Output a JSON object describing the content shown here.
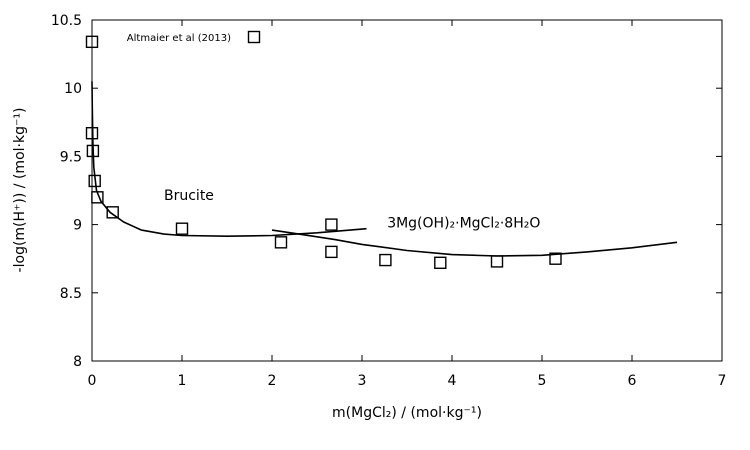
{
  "chart_data": {
    "type": "scatter",
    "xlabel": "m(MgCl₂) / (mol·kg⁻¹)",
    "ylabel": "-log(m(H⁺)) / (mol·kg⁻¹)",
    "xlim": [
      0,
      7
    ],
    "ylim": [
      8,
      10.5
    ],
    "x_ticks": [
      0,
      1,
      2,
      3,
      4,
      5,
      6,
      7
    ],
    "y_ticks": [
      8,
      8.5,
      9,
      9.5,
      10,
      10.5
    ],
    "y_tick_labels": [
      "8",
      "8.5",
      "9",
      "9.5",
      "10",
      "10.5"
    ],
    "grid": false,
    "legend_position": "top-left",
    "series": [
      {
        "name": "Altmaier et al (2013)",
        "kind": "points",
        "marker": "open-square",
        "points": [
          [
            0.0,
            10.34
          ],
          [
            0.0,
            9.67
          ],
          [
            0.01,
            9.54
          ],
          [
            0.03,
            9.32
          ],
          [
            0.06,
            9.2
          ],
          [
            0.23,
            9.09
          ],
          [
            1.0,
            8.97
          ],
          [
            2.1,
            8.87
          ],
          [
            2.66,
            9.0
          ],
          [
            2.66,
            8.8
          ],
          [
            3.26,
            8.74
          ],
          [
            3.87,
            8.72
          ],
          [
            4.5,
            8.73
          ],
          [
            5.15,
            8.75
          ]
        ]
      },
      {
        "name": "Brucite",
        "kind": "line",
        "points": [
          [
            0.0,
            10.05
          ],
          [
            0.003,
            9.85
          ],
          [
            0.01,
            9.6
          ],
          [
            0.02,
            9.42
          ],
          [
            0.05,
            9.25
          ],
          [
            0.1,
            9.17
          ],
          [
            0.2,
            9.09
          ],
          [
            0.35,
            9.02
          ],
          [
            0.55,
            8.96
          ],
          [
            0.8,
            8.93
          ],
          [
            1.0,
            8.92
          ],
          [
            1.5,
            8.915
          ],
          [
            2.0,
            8.92
          ],
          [
            2.5,
            8.94
          ],
          [
            3.05,
            8.97
          ]
        ]
      },
      {
        "name": "3Mg(OH)₂·MgCl₂·8H₂O",
        "kind": "line",
        "points": [
          [
            2.0,
            8.96
          ],
          [
            2.3,
            8.93
          ],
          [
            2.7,
            8.89
          ],
          [
            3.0,
            8.855
          ],
          [
            3.5,
            8.81
          ],
          [
            4.0,
            8.78
          ],
          [
            4.5,
            8.77
          ],
          [
            5.0,
            8.775
          ],
          [
            5.5,
            8.8
          ],
          [
            6.0,
            8.83
          ],
          [
            6.5,
            8.87
          ]
        ]
      }
    ],
    "annotations": [
      {
        "text": "Brucite",
        "x": 0.8,
        "y": 9.18
      },
      {
        "text": "3Mg(OH)₂·MgCl₂·8H₂O",
        "x": 3.28,
        "y": 8.98
      }
    ]
  }
}
